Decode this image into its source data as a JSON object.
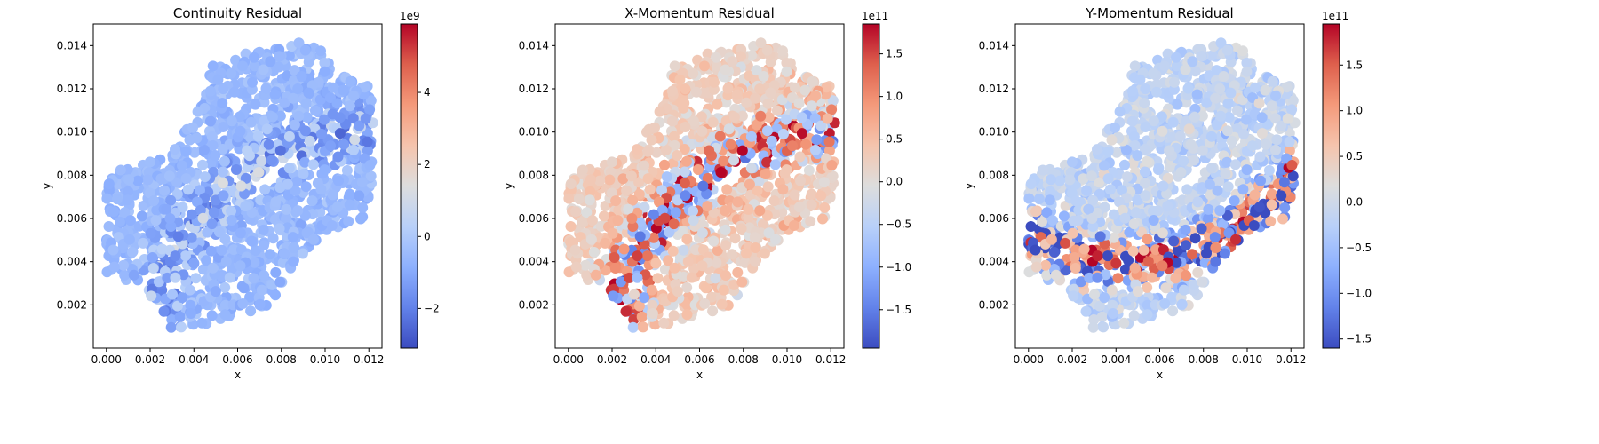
{
  "chart_data": [
    {
      "type": "scatter",
      "title": "Continuity Residual",
      "xlabel": "x",
      "ylabel": "y",
      "xlim": [
        -0.0006,
        0.0126
      ],
      "ylim": [
        0.0,
        0.015
      ],
      "xticks": [
        "0.000",
        "0.002",
        "0.004",
        "0.006",
        "0.008",
        "0.010",
        "0.012"
      ],
      "yticks": [
        "0.002",
        "0.004",
        "0.006",
        "0.008",
        "0.010",
        "0.012",
        "0.014"
      ],
      "colorbar": {
        "exponent": "1e9",
        "min": -3.1,
        "max": 5.9,
        "ticks": [
          -2,
          0,
          2,
          4
        ],
        "tick_labels": [
          "−2",
          "0",
          "2",
          "4"
        ],
        "cmap": "coolwarm"
      },
      "field": {
        "base": -0.55,
        "noise": 0.7,
        "band": {
          "cx": 0.0125,
          "cy": -0.0005,
          "r": 0.0105,
          "amp": 1.2,
          "width": 0.0009
        }
      }
    },
    {
      "type": "scatter",
      "title": "X-Momentum Residual",
      "xlabel": "x",
      "ylabel": "y",
      "xlim": [
        -0.0006,
        0.0126
      ],
      "ylim": [
        0.0,
        0.015
      ],
      "xticks": [
        "0.000",
        "0.002",
        "0.004",
        "0.006",
        "0.008",
        "0.010",
        "0.012"
      ],
      "yticks": [
        "0.002",
        "0.004",
        "0.006",
        "0.008",
        "0.010",
        "0.012",
        "0.014"
      ],
      "colorbar": {
        "exponent": "1e11",
        "min": -1.95,
        "max": 1.85,
        "ticks": [
          1.5,
          1.0,
          0.5,
          0.0,
          -0.5,
          -1.0,
          -1.5
        ],
        "tick_labels": [
          "1.5",
          "1.0",
          "0.5",
          "0.0",
          "−0.5",
          "−1.0",
          "−1.5"
        ],
        "cmap": "coolwarm"
      },
      "field": {
        "base": 0.25,
        "noise": 0.55,
        "band": {
          "cx": 0.0125,
          "cy": -0.0005,
          "r": 0.0105,
          "amp": 1.3,
          "width": 0.0009
        }
      }
    },
    {
      "type": "scatter",
      "title": "Y-Momentum Residual",
      "xlabel": "x",
      "ylabel": "y",
      "xlim": [
        -0.0006,
        0.0126
      ],
      "ylim": [
        0.0,
        0.015
      ],
      "xticks": [
        "0.000",
        "0.002",
        "0.004",
        "0.006",
        "0.008",
        "0.010",
        "0.012"
      ],
      "yticks": [
        "0.002",
        "0.004",
        "0.006",
        "0.008",
        "0.010",
        "0.012",
        "0.014"
      ],
      "colorbar": {
        "exponent": "1e11",
        "min": -1.6,
        "max": 1.95,
        "ticks": [
          1.5,
          1.0,
          0.5,
          0.0,
          -0.5,
          -1.0,
          -1.5
        ],
        "tick_labels": [
          "1.5",
          "1.0",
          "0.5",
          "0.0",
          "−0.5",
          "−1.0",
          "−1.5"
        ],
        "cmap": "coolwarm"
      },
      "field": {
        "base": -0.15,
        "noise": 0.55,
        "band": {
          "cx": 0.0045,
          "cy": 0.0135,
          "r": 0.0095,
          "amp": 1.5,
          "width": 0.0008
        }
      }
    }
  ]
}
